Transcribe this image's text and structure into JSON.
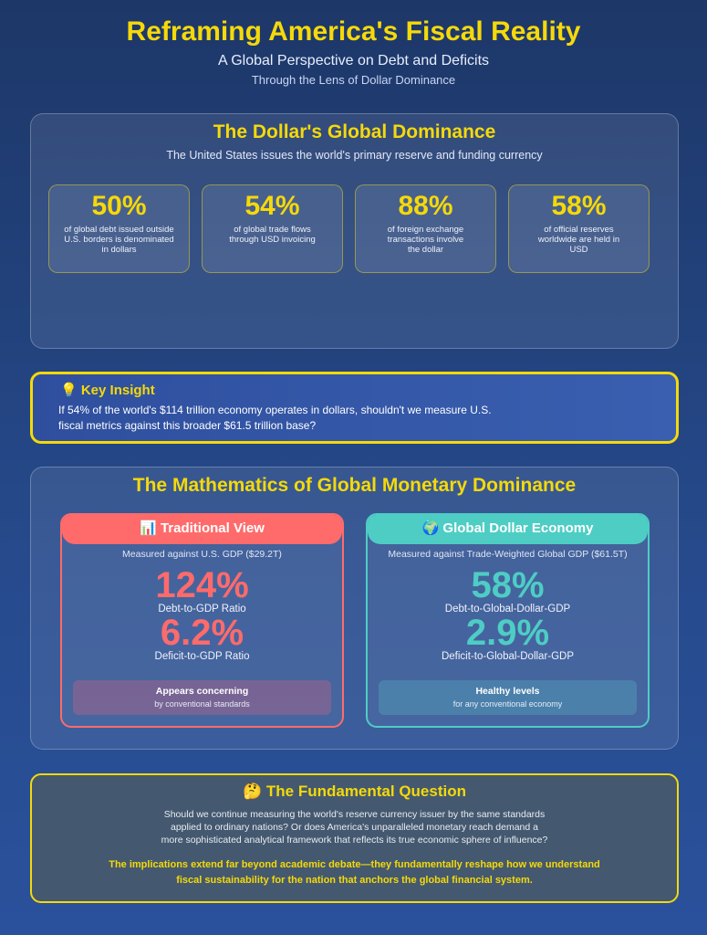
{
  "header": {
    "title": "Reframing America's Fiscal Reality",
    "subtitle": "A Global Perspective on Debt and Deficits",
    "tagline": "Through the Lens of Dollar Dominance"
  },
  "dominance": {
    "title": "The Dollar's Global Dominance",
    "description": "The United States issues the world's primary reserve and funding currency",
    "stats": [
      {
        "value": "50%",
        "text": "of global debt issued outside U.S. borders is denominated in dollars"
      },
      {
        "value": "54%",
        "text": "of global trade flows through USD invoicing"
      },
      {
        "value": "88%",
        "text": "of foreign exchange transactions involve the dollar"
      },
      {
        "value": "58%",
        "text": "of official reserves worldwide are held in USD"
      }
    ]
  },
  "insight": {
    "icon": "lightbulb",
    "title": "💡 Key Insight",
    "body": "If 54% of the world's $114 trillion economy operates in dollars, shouldn't we measure U.S. fiscal metrics against this broader $61.5 trillion base?"
  },
  "math": {
    "title": "The Mathematics of Global Monetary Dominance",
    "traditional": {
      "heading": "📊 Traditional View",
      "sub": "Measured against U.S. GDP ($29.2T)",
      "debt": "124%",
      "debt_label": "Debt-to-GDP Ratio",
      "deficit": "6.2%",
      "deficit_label": "Deficit-to-GDP Ratio",
      "verdict": "Appears concerning",
      "verdict_sub": "by conventional standards",
      "color": "#ff6b6b"
    },
    "global": {
      "heading": "🌍 Global Dollar Economy",
      "sub": "Measured against Trade-Weighted Global GDP ($61.5T)",
      "debt": "58%",
      "debt_label": "Debt-to-Global-Dollar-GDP",
      "deficit": "2.9%",
      "deficit_label": "Deficit-to-Global-Dollar-GDP",
      "verdict": "Healthy levels",
      "verdict_sub": "for any conventional economy",
      "color": "#4ecdc4"
    }
  },
  "question": {
    "title": "🤔 The Fundamental Question",
    "body": "Should we continue measuring the world's reserve currency issuer by the same standards applied to ordinary nations? Or does America's unparalleled monetary reach demand a more sophisticated analytical framework that reflects its true economic sphere of influence?",
    "conclusion": "The implications extend far beyond academic debate—they fundamentally reshape how we understand fiscal sustainability for the nation that anchors the global financial system."
  },
  "colors": {
    "accent": "#f5d90a",
    "background": "#1d3768"
  }
}
